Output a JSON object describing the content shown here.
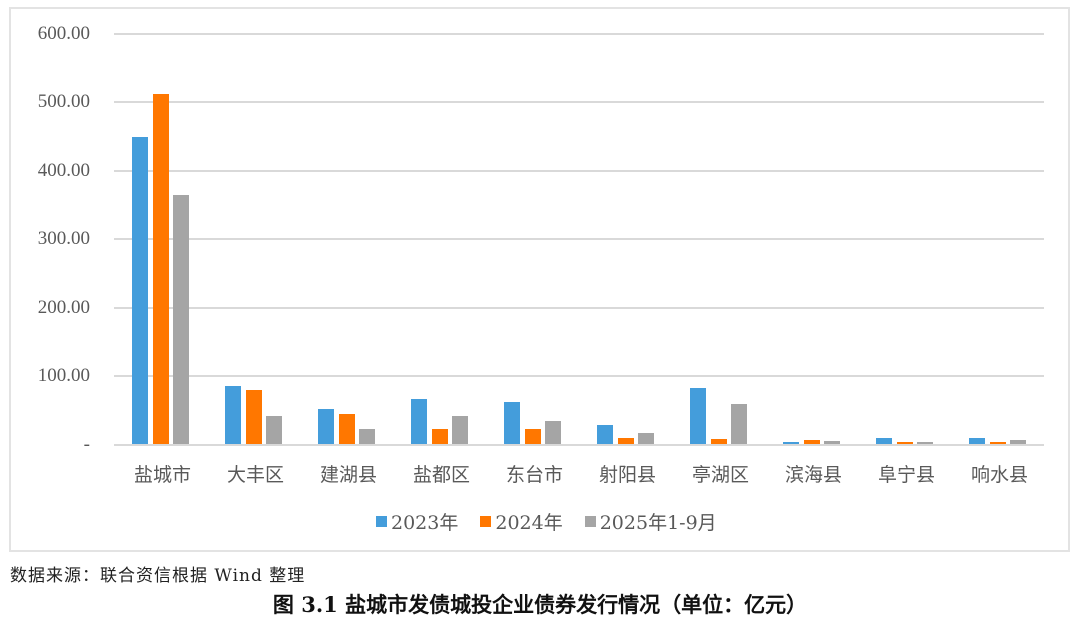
{
  "chart_data": {
    "type": "bar",
    "title": "图 3.1    盐城市发债城投企业债券发行情况（单位：亿元）",
    "xlabel": "",
    "ylabel": "",
    "ylim": [
      0,
      600
    ],
    "yticks": [
      "-",
      "100.00",
      "200.00",
      "300.00",
      "400.00",
      "500.00",
      "600.00"
    ],
    "grid": true,
    "legend_position": "bottom",
    "categories": [
      "盐城市",
      "大丰区",
      "建湖县",
      "盐都区",
      "东台市",
      "射阳县",
      "亭湖区",
      "滨海县",
      "阜宁县",
      "响水县"
    ],
    "series": [
      {
        "name": "2023年",
        "color": "#449DDB",
        "values": [
          449,
          85,
          52,
          67,
          62,
          28,
          82,
          3,
          10,
          9
        ]
      },
      {
        "name": "2024年",
        "color": "#FF7700",
        "values": [
          512,
          79,
          44,
          23,
          23,
          10,
          8,
          6,
          3,
          3
        ]
      },
      {
        "name": "2025年1-9月",
        "color": "#A5A5A5",
        "values": [
          365,
          42,
          23,
          41,
          34,
          17,
          59,
          5,
          3,
          6
        ]
      }
    ]
  },
  "source": "数据来源：联合资信根据 Wind 整理",
  "caption": "图 3.1    盐城市发债城投企业债券发行情况（单位：亿元）"
}
